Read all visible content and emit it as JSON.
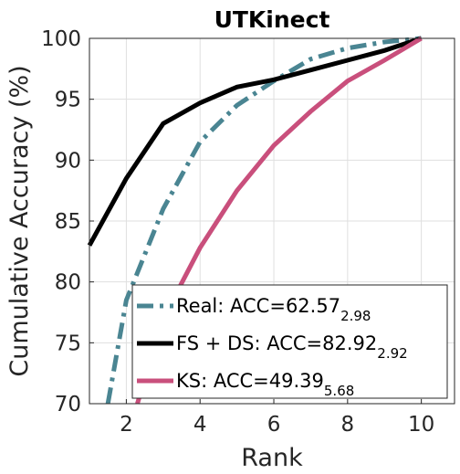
{
  "chart_data": {
    "type": "line",
    "title": "UTKinect",
    "xlabel": "Rank",
    "ylabel": "Cumulative Accuracy (%)",
    "xlim": [
      1,
      10.9
    ],
    "ylim": [
      70,
      100
    ],
    "xticks": [
      2,
      4,
      6,
      8,
      10
    ],
    "yticks": [
      70,
      75,
      80,
      85,
      90,
      95,
      100
    ],
    "grid": true,
    "legend_position": "bottom-right",
    "series": [
      {
        "name": "Real: ACC=62.57",
        "sub": "2.98",
        "color": "#4A8592",
        "dash": "18,7,4,7",
        "width": 5,
        "x": [
          1.5,
          2,
          3,
          4,
          5,
          6,
          7,
          8,
          9,
          10
        ],
        "y": [
          70,
          78.5,
          86,
          91.5,
          94.5,
          96.5,
          98.3,
          99.2,
          99.7,
          100
        ]
      },
      {
        "name": "FS + DS: ACC=82.92",
        "sub": "2.92",
        "color": "#000000",
        "dash": "",
        "width": 5,
        "x": [
          1,
          2,
          3,
          4,
          5,
          6,
          7,
          8,
          9,
          10
        ],
        "y": [
          83,
          88.5,
          93,
          94.7,
          96,
          96.6,
          97.4,
          98.2,
          99,
          100
        ]
      },
      {
        "name": "KS: ACC=49.39",
        "sub": "5.68",
        "color": "#C94F7C",
        "dash": "",
        "width": 5,
        "x": [
          2.3,
          3,
          4,
          5,
          6,
          7,
          8,
          9,
          10
        ],
        "y": [
          70,
          77,
          82.8,
          87.5,
          91.2,
          94,
          96.5,
          98.2,
          100
        ]
      }
    ]
  }
}
